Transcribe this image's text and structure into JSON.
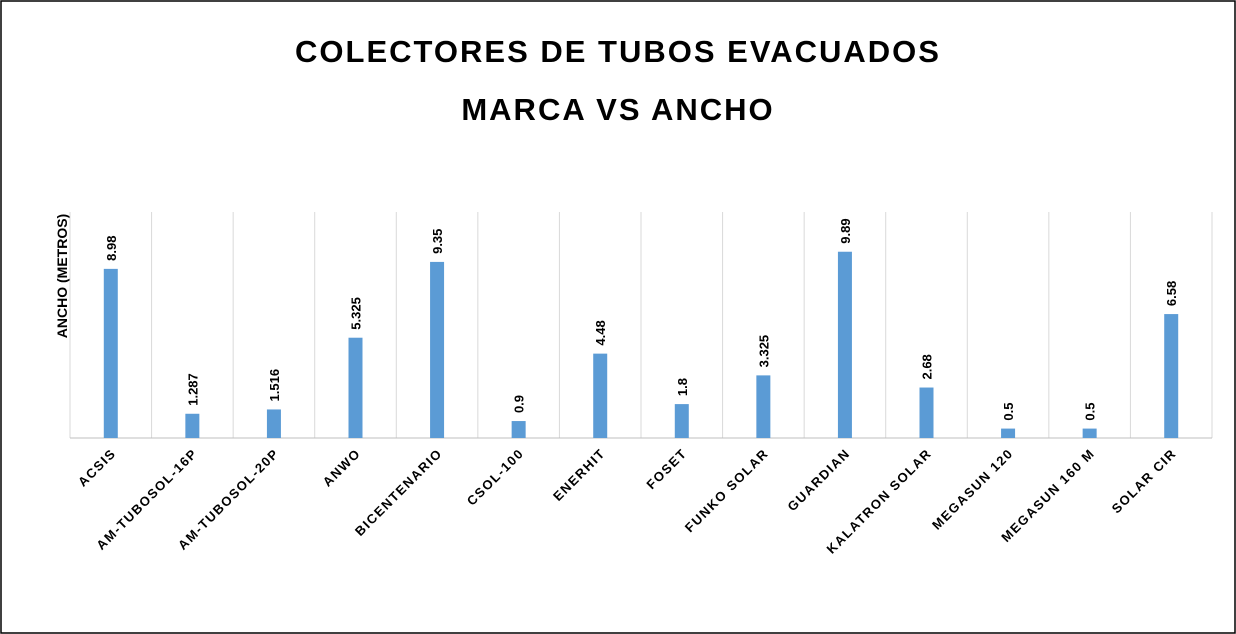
{
  "chart_data": {
    "type": "bar",
    "title": [
      "COLECTORES DE TUBOS EVACUADOS",
      "MARCA VS ANCHO"
    ],
    "y_label": "ANCHO (METROS)",
    "categories": [
      "ACSIS",
      "AM-TUBOSOL-16P",
      "AM-TUBOSOL-20P",
      "ANWO",
      "BICENTENARIO",
      "CSOL-100",
      "ENERHIT",
      "FOSET",
      "FUNKO SOLAR",
      "GUARDIAN",
      "KALATRON SOLAR",
      "MEGASUN 120",
      "MEGASUN 160 M",
      "SOLAR CIR"
    ],
    "values": [
      8.98,
      1.287,
      1.516,
      5.325,
      9.35,
      0.9,
      4.48,
      1.8,
      3.325,
      9.89,
      2.68,
      0.5,
      0.5,
      6.58
    ],
    "color": "#5b9bd5",
    "ylim": [
      0,
      12
    ],
    "grid": true
  }
}
